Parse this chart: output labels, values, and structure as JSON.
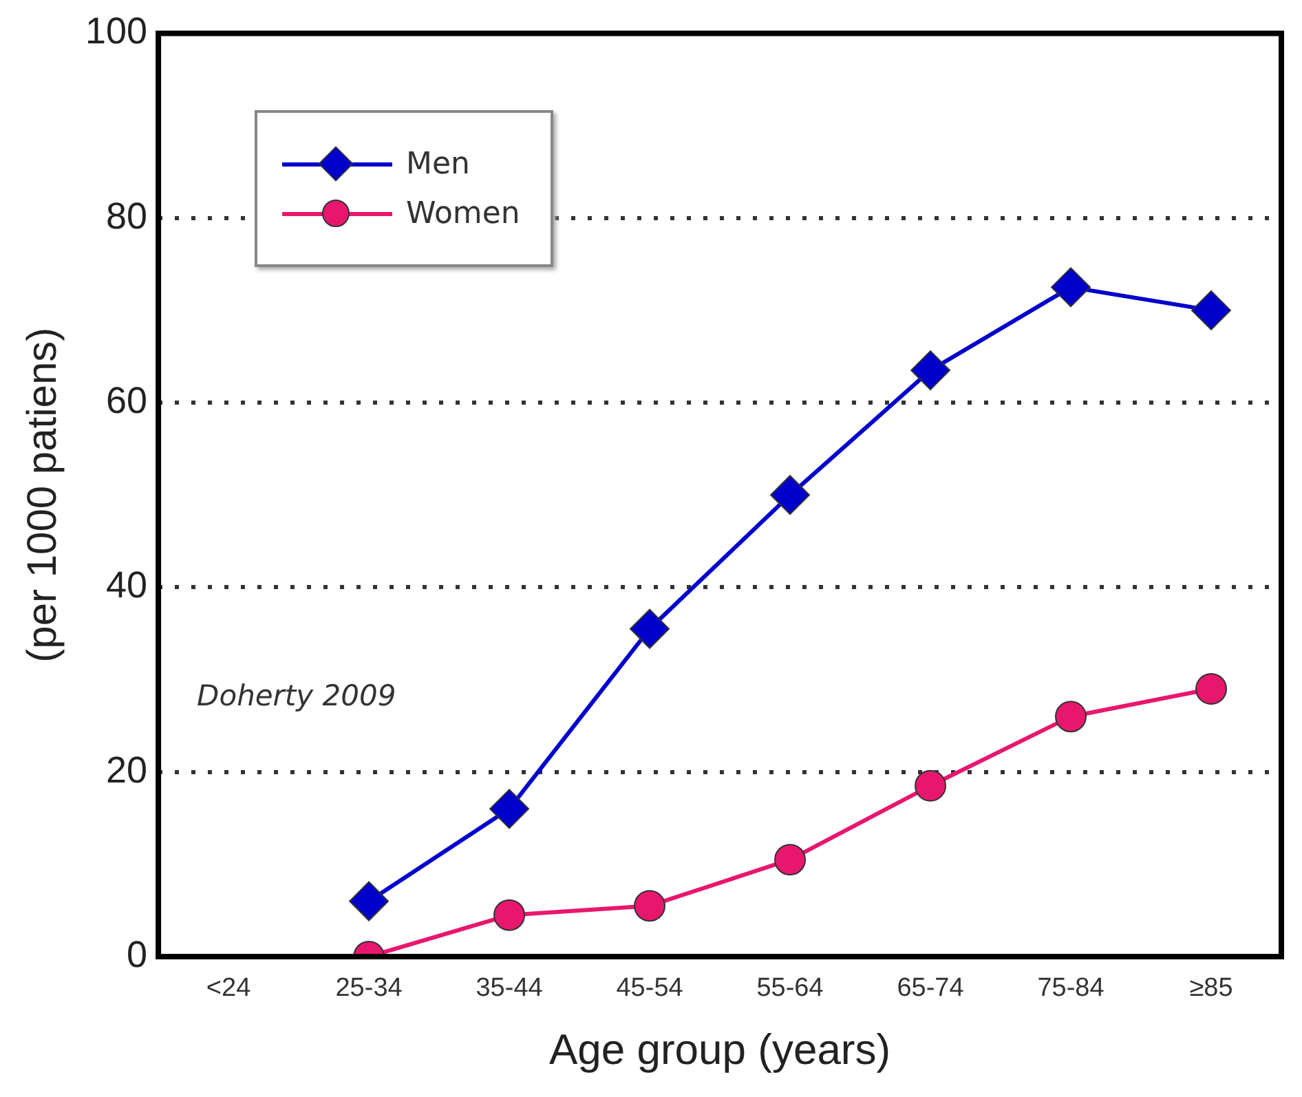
{
  "chart_data": {
    "type": "line",
    "ylabel": "(per 1000 patiens)",
    "xlabel": "Age group (years)",
    "categories": [
      "<24",
      "25-34",
      "35-44",
      "45-54",
      "55-64",
      "65-74",
      "75-84",
      "≥85"
    ],
    "series": [
      {
        "name": "Men",
        "color": "#0000cc",
        "marker": "diamond",
        "values": [
          null,
          6,
          16,
          35.5,
          50,
          63.5,
          72.5,
          70
        ]
      },
      {
        "name": "Women",
        "color": "#e8176e",
        "marker": "circle",
        "values": [
          null,
          0,
          4.5,
          5.5,
          10.5,
          18.5,
          26,
          29
        ]
      }
    ],
    "ylim": [
      0,
      100
    ],
    "yticks": [
      0,
      20,
      40,
      60,
      80,
      100
    ],
    "grid": "y",
    "legend": "top left",
    "line_style": "solid",
    "annotations": [
      "Doherty 2009"
    ]
  }
}
